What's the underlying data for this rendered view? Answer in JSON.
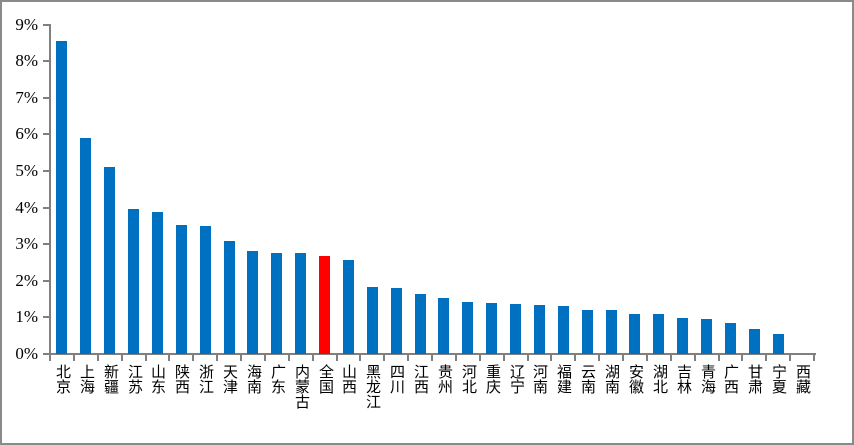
{
  "chart_data": {
    "type": "bar",
    "categories": [
      "北京",
      "上海",
      "新疆",
      "江苏",
      "山东",
      "陕西",
      "浙江",
      "天津",
      "海南",
      "广东",
      "内蒙古",
      "全国",
      "山西",
      "黑龙江",
      "四川",
      "江西",
      "贵州",
      "河北",
      "重庆",
      "辽宁",
      "河南",
      "福建",
      "云南",
      "湖南",
      "安徽",
      "湖北",
      "吉林",
      "青海",
      "广西",
      "甘肃",
      "宁夏",
      "西藏"
    ],
    "values": [
      8.55,
      5.9,
      5.1,
      3.95,
      3.88,
      3.52,
      3.5,
      3.1,
      2.81,
      2.75,
      2.75,
      2.68,
      2.57,
      1.84,
      1.8,
      1.64,
      1.53,
      1.43,
      1.4,
      1.37,
      1.35,
      1.31,
      1.2,
      1.19,
      1.1,
      1.09,
      0.98,
      0.96,
      0.86,
      0.68,
      0.56,
      0
    ],
    "value_unit": "%",
    "bar_color": "#0070C0",
    "highlight": {
      "category": "全国",
      "color": "#FF0000"
    },
    "yaxis": {
      "min": 0,
      "max": 9,
      "tick_step": 1,
      "tick_labels": [
        "0%",
        "1%",
        "2%",
        "3%",
        "4%",
        "5%",
        "6%",
        "7%",
        "8%",
        "9%"
      ]
    },
    "xaxis": {
      "tick_marks": "between-categories",
      "label_orientation": "vertical"
    },
    "grid": false,
    "legend": "none"
  }
}
